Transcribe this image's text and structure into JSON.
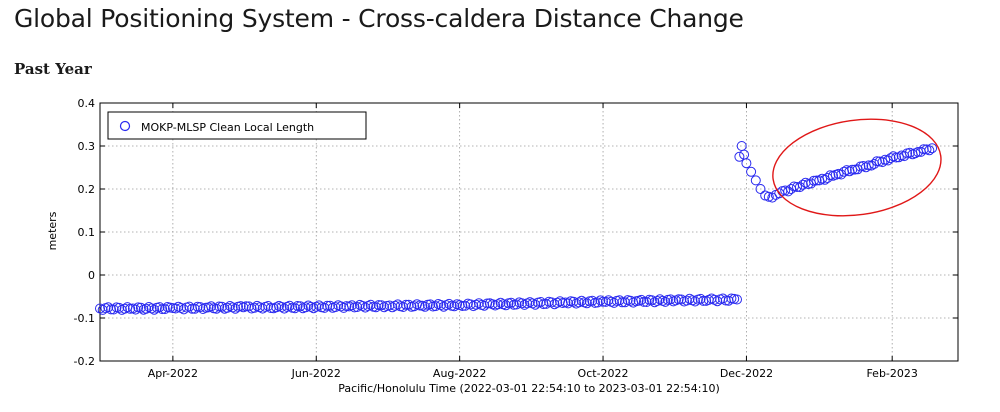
{
  "page": {
    "title": "Global Positioning System - Cross-caldera Distance Change",
    "subtitle": "Past Year"
  },
  "chart_data": {
    "type": "scatter",
    "xlabel": "Pacific/Honolulu Time (2022-03-01 22:54:10 to 2023-03-01 22:54:10)",
    "ylabel": "meters",
    "xlim": [
      "2022-03-01",
      "2023-03-01"
    ],
    "ylim": [
      -0.2,
      0.4
    ],
    "yticks": [
      -0.2,
      -0.1,
      0,
      0.1,
      0.2,
      0.3,
      0.4
    ],
    "ytick_labels": [
      "-0.2",
      "-0.1",
      "0",
      "0.1",
      "0.2",
      "0.3",
      "0.4"
    ],
    "xticks": [
      "2022-04-01",
      "2022-06-01",
      "2022-08-01",
      "2022-10-01",
      "2022-12-01",
      "2023-02-01"
    ],
    "xtick_labels": [
      "Apr-2022",
      "Jun-2022",
      "Aug-2022",
      "Oct-2022",
      "Dec-2022",
      "Feb-2023"
    ],
    "grid": true,
    "legend_position": "top-left",
    "series": [
      {
        "name": "MOKP-MLSP Clean Local Length",
        "marker": "open-circle",
        "color": "#2a2af0",
        "points": [
          [
            "2022-03-01",
            -0.078
          ],
          [
            "2022-03-15",
            -0.078
          ],
          [
            "2022-04-01",
            -0.077
          ],
          [
            "2022-04-15",
            -0.076
          ],
          [
            "2022-05-01",
            -0.075
          ],
          [
            "2022-05-15",
            -0.075
          ],
          [
            "2022-06-01",
            -0.074
          ],
          [
            "2022-06-15",
            -0.073
          ],
          [
            "2022-07-01",
            -0.072
          ],
          [
            "2022-07-15",
            -0.071
          ],
          [
            "2022-08-01",
            -0.07
          ],
          [
            "2022-08-15",
            -0.068
          ],
          [
            "2022-09-01",
            -0.066
          ],
          [
            "2022-09-15",
            -0.064
          ],
          [
            "2022-10-01",
            -0.062
          ],
          [
            "2022-10-15",
            -0.061
          ],
          [
            "2022-11-01",
            -0.059
          ],
          [
            "2022-11-15",
            -0.058
          ],
          [
            "2022-11-27",
            -0.057
          ],
          [
            "2022-11-28",
            0.275
          ],
          [
            "2022-11-29",
            0.3
          ],
          [
            "2022-11-30",
            0.28
          ],
          [
            "2022-12-01",
            0.26
          ],
          [
            "2022-12-03",
            0.24
          ],
          [
            "2022-12-05",
            0.22
          ],
          [
            "2022-12-07",
            0.2
          ],
          [
            "2022-12-09",
            0.185
          ],
          [
            "2022-12-12",
            0.18
          ],
          [
            "2022-12-15",
            0.19
          ],
          [
            "2022-12-20",
            0.2
          ],
          [
            "2022-12-25",
            0.21
          ],
          [
            "2023-01-01",
            0.22
          ],
          [
            "2023-01-08",
            0.233
          ],
          [
            "2023-01-15",
            0.245
          ],
          [
            "2023-01-22",
            0.255
          ],
          [
            "2023-01-29",
            0.268
          ],
          [
            "2023-02-05",
            0.278
          ],
          [
            "2023-02-12",
            0.286
          ],
          [
            "2023-02-18",
            0.295
          ]
        ]
      }
    ],
    "annotation": {
      "shape": "ellipse",
      "color": "#e01818",
      "encloses_x": [
        "2022-12-12",
        "2023-02-22"
      ],
      "encloses_y": [
        0.14,
        0.36
      ]
    }
  }
}
